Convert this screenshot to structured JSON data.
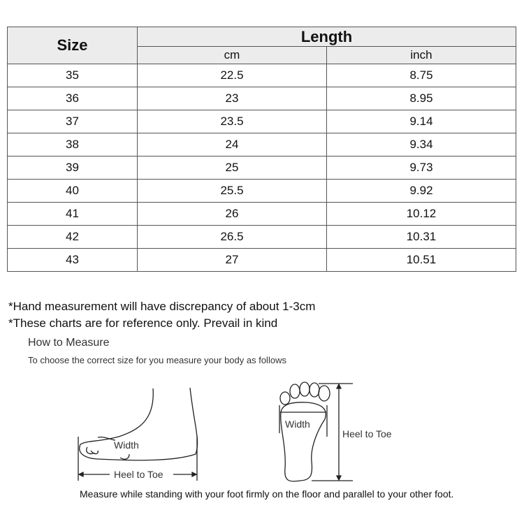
{
  "table": {
    "size_header": "Size",
    "length_header": "Length",
    "cm_header": "cm",
    "inch_header": "inch",
    "rows": [
      {
        "size": "35",
        "cm": "22.5",
        "inch": "8.75"
      },
      {
        "size": "36",
        "cm": "23",
        "inch": "8.95"
      },
      {
        "size": "37",
        "cm": "23.5",
        "inch": "9.14"
      },
      {
        "size": "38",
        "cm": "24",
        "inch": "9.34"
      },
      {
        "size": "39",
        "cm": "25",
        "inch": "9.73"
      },
      {
        "size": "40",
        "cm": "25.5",
        "inch": "9.92"
      },
      {
        "size": "41",
        "cm": "26",
        "inch": "10.12"
      },
      {
        "size": "42",
        "cm": "26.5",
        "inch": "10.31"
      },
      {
        "size": "43",
        "cm": "27",
        "inch": "10.51"
      }
    ]
  },
  "notes": [
    "*Hand measurement will have discrepancy of about 1-3cm",
    "*These charts are for reference only. Prevail in kind"
  ],
  "how_to": {
    "title": "How to Measure",
    "subtitle": "To choose the correct size for you measure your body as follows"
  },
  "diagram": {
    "side_width": "Width",
    "side_length": "Heel to Toe",
    "sole_width": "Width",
    "sole_length": "Heel to Toe"
  },
  "instruction": "Measure while standing with your foot firmly on the floor and parallel to your other foot."
}
